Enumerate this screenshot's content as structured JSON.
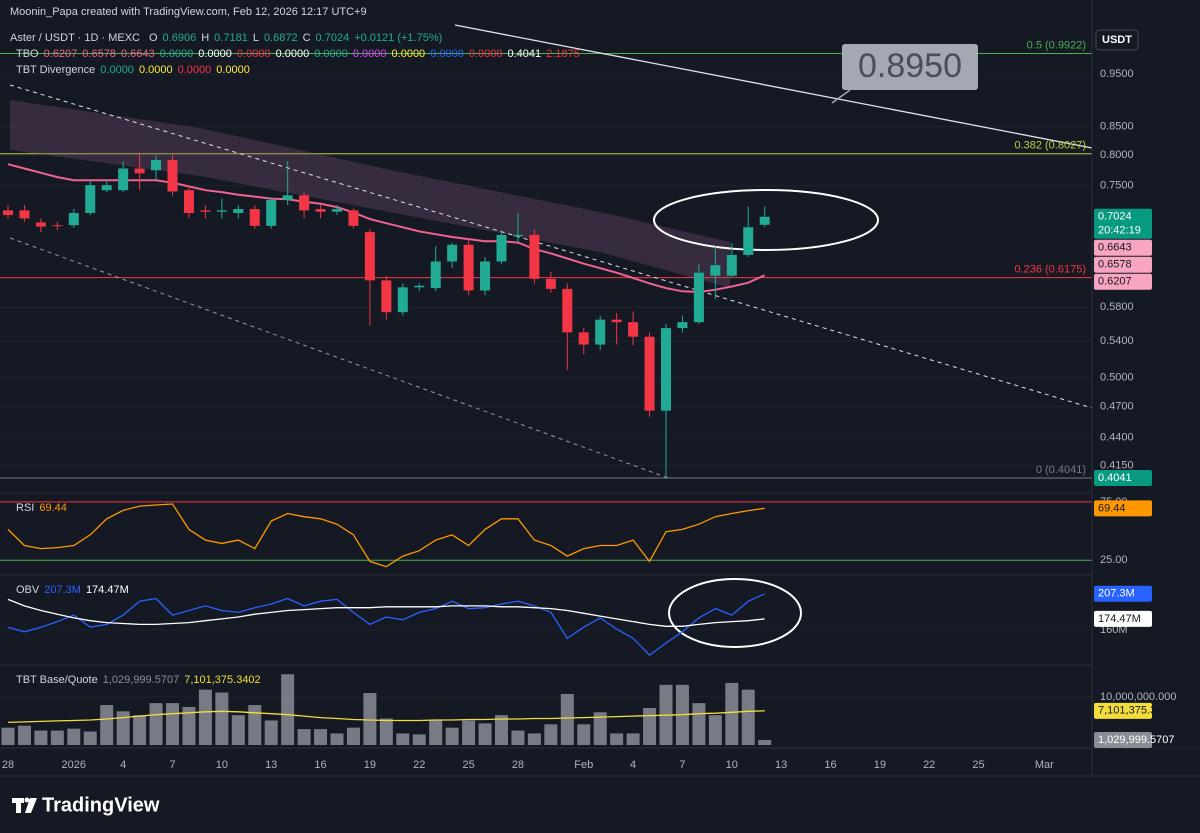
{
  "header": {
    "credit": "Moonin_Papa created with TradingView.com, Feb 12, 2026 12:17 UTC+9",
    "currency": "USDT"
  },
  "legend": {
    "symbol": "Aster / USDT · 1D · MEXC",
    "ohlc_letters": [
      "O",
      "H",
      "L",
      "C"
    ],
    "change": "+0.0121 (+1.75%)",
    "value_color": "#22ab94",
    "tbo": {
      "name": "TBO",
      "items": [
        {
          "text": "0.6207",
          "color": "#f06292"
        },
        {
          "text": "0.6578",
          "color": "#f06292"
        },
        {
          "text": "0.6643",
          "color": "#f06292"
        },
        {
          "text": "0.0000",
          "color": "#22ab94"
        },
        {
          "text": "0.0000",
          "color": "#ffffff"
        },
        {
          "text": "0.0000",
          "color": "#f23645"
        },
        {
          "text": "0.0000",
          "color": "#ffffff"
        },
        {
          "text": "0.0000",
          "color": "#22ab94"
        },
        {
          "text": "0.0000",
          "color": "#e040fb"
        },
        {
          "text": "0.0000",
          "color": "#ffeb3b"
        },
        {
          "text": "0.0000",
          "color": "#2962ff"
        },
        {
          "text": "0.0000",
          "color": "#f23645"
        },
        {
          "text": "0.4041",
          "color": "#ffffff"
        },
        {
          "text": "2.1875",
          "color": "#f23645"
        }
      ]
    },
    "divergence": {
      "name": "TBT Divergence",
      "items": [
        {
          "text": "0.0000",
          "color": "#22ab94"
        },
        {
          "text": "0.0000",
          "color": "#ffeb3b"
        },
        {
          "text": "0.0000",
          "color": "#f23645"
        },
        {
          "text": "0.0000",
          "color": "#ffeb3b"
        }
      ]
    }
  },
  "annotation": "0.8950",
  "footer": {
    "brand": "TradingView"
  },
  "chart_data": [
    {
      "type": "candlestick",
      "log_scale": true,
      "grid": true,
      "up_color": "#22ab94",
      "down_color": "#f23645",
      "categories": [
        "28",
        null,
        null,
        null,
        "2026",
        null,
        null,
        "4",
        null,
        null,
        "7",
        null,
        null,
        "10",
        null,
        null,
        "13",
        null,
        null,
        "16",
        null,
        null,
        "19",
        null,
        null,
        "22",
        null,
        null,
        "25",
        null,
        null,
        "28",
        null,
        null,
        null,
        "Feb",
        null,
        null,
        "4",
        null,
        null,
        "7",
        null,
        null,
        "10",
        null,
        null,
        "13",
        null,
        null,
        "16",
        null,
        null,
        "19",
        null,
        null,
        "22",
        null,
        null,
        "25",
        null,
        null,
        null,
        "Mar",
        null,
        null
      ],
      "open": [
        0.712,
        0.712,
        0.694,
        0.69,
        0.69,
        0.708,
        0.743,
        0.743,
        0.778,
        0.775,
        0.792,
        0.743,
        0.712,
        0.71,
        0.708,
        0.714,
        0.689,
        0.728,
        0.735,
        0.714,
        0.71,
        0.712,
        0.68,
        0.614,
        0.574,
        0.605,
        0.604,
        0.639,
        0.662,
        0.601,
        0.639,
        0.674,
        0.676,
        0.616,
        0.603,
        0.55,
        0.536,
        0.565,
        0.562,
        0.545,
        0.466,
        0.555,
        0.562,
        0.62,
        0.62,
        0.648,
        0.6906,
        null,
        null,
        null,
        null,
        null,
        null,
        null,
        null,
        null,
        null,
        null,
        null,
        null,
        null,
        null,
        null,
        null,
        null,
        null
      ],
      "high": [
        0.72,
        0.72,
        0.7,
        0.695,
        0.714,
        0.76,
        0.76,
        0.79,
        0.805,
        0.8,
        0.8,
        0.75,
        0.72,
        0.73,
        0.72,
        0.72,
        0.73,
        0.79,
        0.74,
        0.72,
        0.72,
        0.715,
        0.684,
        0.62,
        0.61,
        0.61,
        0.66,
        0.665,
        0.67,
        0.645,
        0.68,
        0.708,
        0.684,
        0.625,
        0.61,
        0.555,
        0.57,
        0.573,
        0.575,
        0.55,
        0.56,
        0.57,
        0.635,
        0.66,
        0.664,
        0.718,
        0.7181,
        null,
        null,
        null,
        null,
        null,
        null,
        null,
        null,
        null,
        null,
        null,
        null,
        null,
        null,
        null,
        null,
        null,
        null,
        null
      ],
      "low": [
        0.7,
        0.695,
        0.68,
        0.683,
        0.686,
        0.705,
        0.74,
        0.74,
        0.743,
        0.76,
        0.735,
        0.7,
        0.7,
        0.7,
        0.7,
        0.685,
        0.685,
        0.72,
        0.7,
        0.7,
        0.705,
        0.685,
        0.558,
        0.565,
        0.57,
        0.6,
        0.6,
        0.63,
        0.595,
        0.595,
        0.635,
        0.665,
        0.61,
        0.598,
        0.508,
        0.525,
        0.53,
        0.536,
        0.535,
        0.46,
        0.4041,
        0.55,
        0.56,
        0.59,
        0.618,
        0.645,
        0.6872,
        null,
        null,
        null,
        null,
        null,
        null,
        null,
        null,
        null,
        null,
        null,
        null,
        null,
        null,
        null,
        null,
        null,
        null,
        null
      ],
      "close": [
        0.705,
        0.7,
        0.688,
        0.689,
        0.708,
        0.751,
        0.751,
        0.778,
        0.77,
        0.792,
        0.741,
        0.708,
        0.71,
        0.712,
        0.714,
        0.689,
        0.728,
        0.735,
        0.712,
        0.71,
        0.714,
        0.689,
        0.614,
        0.574,
        0.605,
        0.607,
        0.639,
        0.662,
        0.601,
        0.639,
        0.676,
        0.676,
        0.616,
        0.603,
        0.55,
        0.536,
        0.565,
        0.562,
        0.545,
        0.466,
        0.555,
        0.562,
        0.624,
        0.634,
        0.648,
        0.687,
        0.7024,
        null,
        null,
        null,
        null,
        null,
        null,
        null,
        null,
        null,
        null,
        null,
        null,
        null,
        null,
        null,
        null,
        null,
        null,
        null
      ],
      "overlays": [
        {
          "color": "#f06292",
          "values": [
            0.785,
            0.778,
            0.771,
            0.764,
            0.759,
            0.759,
            0.759,
            0.759,
            0.759,
            0.759,
            0.755,
            0.749,
            0.743,
            0.74,
            0.736,
            0.733,
            0.73,
            0.729,
            0.725,
            0.722,
            0.717,
            0.709,
            0.699,
            0.693,
            0.687,
            0.681,
            0.677,
            0.673,
            0.67,
            0.667,
            0.667,
            0.665,
            0.656,
            0.65,
            0.643,
            0.636,
            0.63,
            0.624,
            0.617,
            0.61,
            0.604,
            0.6,
            0.599,
            0.602,
            0.606,
            0.611,
            0.6207,
            null,
            null,
            null,
            null,
            null,
            null,
            null,
            null,
            null,
            null,
            null,
            null,
            null,
            null,
            null,
            null,
            null,
            null,
            null
          ]
        }
      ],
      "ylim": [
        0.394,
        1.054
      ],
      "yticks": [
        {
          "value": 0.95,
          "label": "0.9500"
        },
        {
          "value": 0.85,
          "label": "0.8500"
        },
        {
          "value": 0.8,
          "label": "0.8000"
        },
        {
          "value": 0.75,
          "label": "0.7500"
        },
        {
          "value": 0.58,
          "label": "0.5800"
        },
        {
          "value": 0.54,
          "label": "0.5400"
        },
        {
          "value": 0.5,
          "label": "0.5000"
        },
        {
          "value": 0.47,
          "label": "0.4700"
        },
        {
          "value": 0.44,
          "label": "0.4400"
        },
        {
          "value": 0.415,
          "label": "0.4150"
        }
      ],
      "fib_levels": [
        {
          "label": "0.5 (0.9922)",
          "value": 0.9922,
          "color": "#4caf50"
        },
        {
          "label": "0.382 (0.8027)",
          "value": 0.8027,
          "color": "#b7d23a"
        },
        {
          "label": "0.236 (0.6175)",
          "value": 0.6175,
          "color": "#f23645"
        },
        {
          "label": "0 (0.4041)",
          "value": 0.4041,
          "color": "#787b86"
        }
      ],
      "price_tags": [
        {
          "value": 0.7024,
          "color": "#089981",
          "countdown": "20:42:19"
        },
        {
          "value": 0.6643,
          "color": "#f8a5c2"
        },
        {
          "value": 0.6578,
          "color": "#f8a5c2"
        },
        {
          "value": 0.6207,
          "color": "#f8a5c2"
        },
        {
          "value": 0.4041,
          "color": "#089981"
        }
      ]
    },
    {
      "type": "line",
      "name": "RSI",
      "ylim": [
        15,
        80
      ],
      "yticks": [
        {
          "value": 75,
          "label": "75.00"
        },
        {
          "value": 25,
          "label": "25.00"
        }
      ],
      "tick_colors": [
        "#f23645",
        "#4caf50"
      ],
      "series": [
        {
          "color": "#ff9800",
          "values": [
            51.4,
            37.7,
            35,
            35.9,
            37.7,
            46.8,
            60.5,
            67.7,
            71.4,
            72.3,
            73.2,
            51.4,
            42.3,
            39.5,
            42.3,
            35,
            58.6,
            65,
            62.3,
            60.5,
            55.9,
            46.8,
            24.1,
            19.5,
            28.6,
            33.2,
            42.3,
            46.8,
            37.7,
            51.4,
            60.5,
            60.5,
            42.3,
            37.7,
            28.6,
            35,
            37.7,
            37.7,
            42.3,
            24.1,
            49.5,
            51.4,
            55.9,
            62.3,
            65,
            67.5,
            69.44
          ]
        }
      ]
    },
    {
      "type": "line",
      "name": "OBV",
      "ylim": [
        118,
        228
      ],
      "yticks": [
        {
          "value": 160,
          "label": "160M"
        }
      ],
      "series": [
        {
          "color": "#2962ff",
          "last_label": "207.3M",
          "values": [
            163.6,
            157.5,
            163.6,
            170.9,
            179.4,
            163.6,
            167.2,
            179.4,
            197.6,
            201.2,
            179.4,
            185.4,
            191.5,
            185.4,
            183,
            189.1,
            193.9,
            201.2,
            191.5,
            197.6,
            200,
            183,
            167.2,
            176.9,
            173.3,
            183,
            187.9,
            197.6,
            187.9,
            189.1,
            193.9,
            197.6,
            191.5,
            183,
            149,
            163.6,
            175.7,
            161.1,
            149,
            127.1,
            142.9,
            157.5,
            175.7,
            187.9,
            179.4,
            197.6,
            207.3
          ]
        },
        {
          "color": "#ffffff",
          "last_label": "174.47M",
          "values": [
            200,
            191.5,
            185.4,
            180.6,
            175.7,
            172.1,
            169.6,
            168.4,
            167.2,
            167.2,
            168.4,
            169.6,
            172.1,
            174.5,
            176.9,
            180.6,
            183,
            185.4,
            186.6,
            187.9,
            189.1,
            189.1,
            189.1,
            190.3,
            190.3,
            190.3,
            190.3,
            191.5,
            191.5,
            191.5,
            190.3,
            190.3,
            189.1,
            187.9,
            185.4,
            181.8,
            178.1,
            174.5,
            170.9,
            167.2,
            164.8,
            164.8,
            167.2,
            169.6,
            170.9,
            172.1,
            174.47
          ]
        }
      ]
    },
    {
      "type": "bar",
      "name": "TBT Base/Quote",
      "ylim": [
        0,
        16000000
      ],
      "yticks": [
        {
          "value": 10000000,
          "label": "10,000,000.000"
        }
      ],
      "series": [
        {
          "style": "bar",
          "color": "#8a8d96",
          "last_label": "1,029,999.5707",
          "values": [
            3600000,
            4000000,
            3000000,
            3000000,
            3400000,
            2800000,
            8300000,
            7000000,
            6200000,
            8700000,
            8700000,
            7900000,
            11500000,
            10900000,
            6200000,
            8300000,
            5100000,
            14700000,
            3300000,
            3300000,
            2400000,
            3600000,
            10800000,
            5500000,
            2400000,
            2200000,
            5100000,
            3600000,
            5100000,
            4500000,
            6200000,
            3000000,
            2400000,
            4300000,
            10600000,
            4300000,
            6800000,
            2400000,
            2400000,
            7700000,
            12500000,
            12500000,
            8700000,
            6200000,
            12900000,
            11500000,
            1029999.5707
          ]
        },
        {
          "style": "line",
          "color": "#f2dd3b",
          "last_label": "7,101,375.3402",
          "values": [
            4700000,
            4800000,
            4900000,
            5000000,
            5100000,
            5200000,
            5400000,
            5700000,
            6000000,
            6300000,
            6500000,
            6700000,
            6900000,
            7000000,
            6900000,
            6700000,
            6500000,
            6300000,
            6000000,
            5700000,
            5500000,
            5300000,
            5200000,
            5100000,
            5100000,
            5100000,
            5200000,
            5200000,
            5300000,
            5300000,
            5400000,
            5400000,
            5500000,
            5500000,
            5600000,
            5700000,
            5800000,
            5900000,
            6000000,
            6100000,
            6200000,
            6300000,
            6500000,
            6600000,
            6800000,
            7000000,
            7101375.3402
          ]
        }
      ]
    }
  ]
}
